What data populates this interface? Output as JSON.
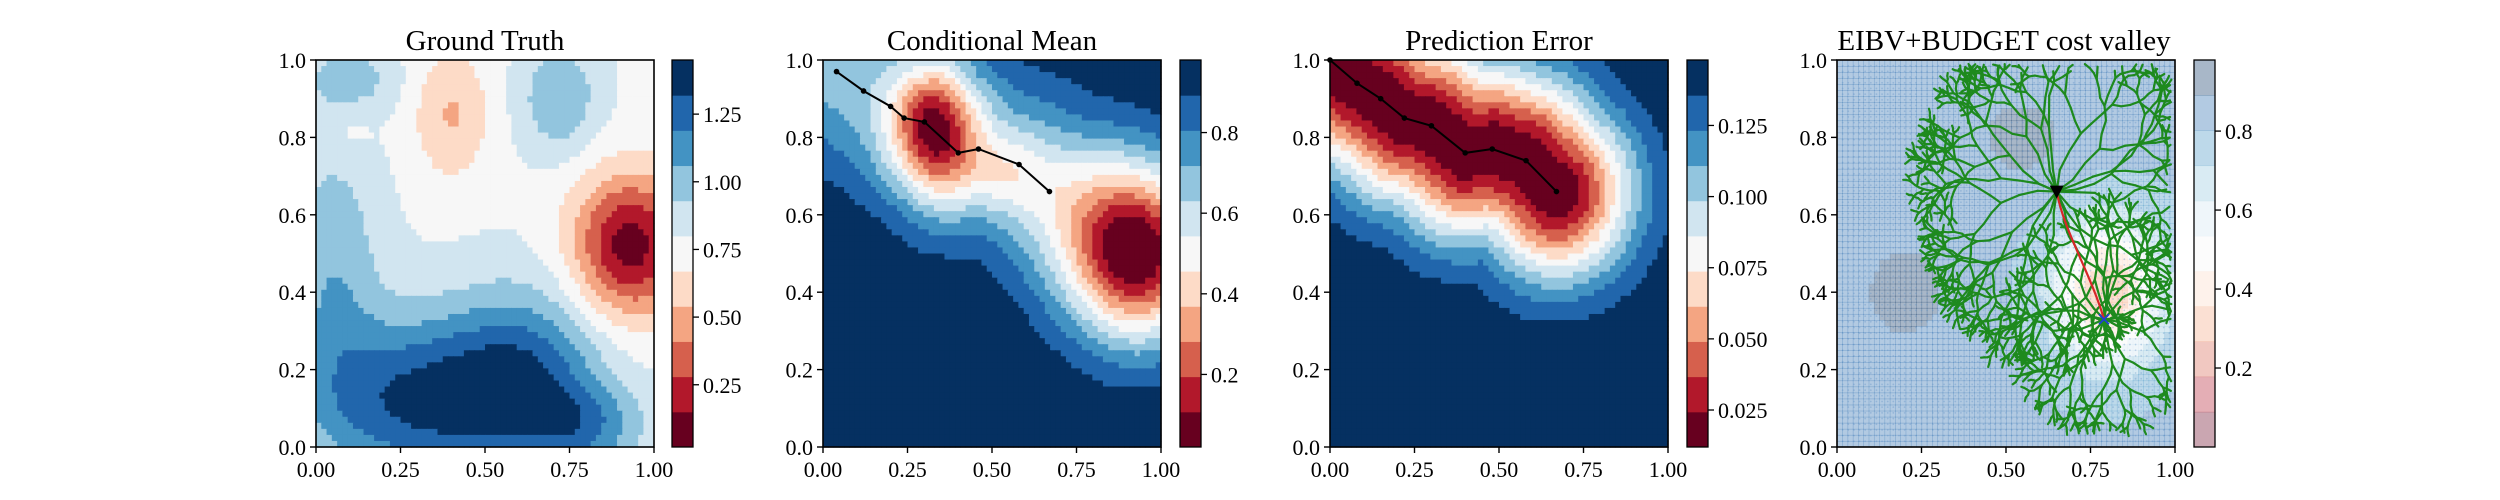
{
  "chart_data": [
    {
      "type": "heatmap",
      "title": "Ground Truth",
      "xlim": [
        0,
        1
      ],
      "ylim": [
        0,
        1
      ],
      "xticks": [
        "0.00",
        "0.25",
        "0.50",
        "0.75",
        "1.00"
      ],
      "yticks": [
        "0.0",
        "0.2",
        "0.4",
        "0.6",
        "0.8",
        "1.0"
      ],
      "colormap": "RdBu",
      "colorbar": {
        "range": [
          0.02,
          1.45
        ],
        "ticks": [
          "0.25",
          "0.50",
          "0.75",
          "1.00",
          "1.25"
        ]
      },
      "field": {
        "base": 0.78,
        "blobs": [
          {
            "x": 0.93,
            "y": 0.52,
            "amp": -0.7,
            "sx": 0.12,
            "sy": 0.13
          },
          {
            "x": 0.4,
            "y": 0.86,
            "amp": -0.25,
            "sx": 0.08,
            "sy": 0.12
          },
          {
            "x": 0.1,
            "y": 0.82,
            "amp": -0.08,
            "sx": 0.05,
            "sy": 0.05
          },
          {
            "x": 0.3,
            "y": 0.12,
            "amp": 0.55,
            "sx": 0.22,
            "sy": 0.15
          },
          {
            "x": 0.62,
            "y": 0.18,
            "amp": 0.45,
            "sx": 0.16,
            "sy": 0.16
          },
          {
            "x": 0.8,
            "y": 0.05,
            "amp": 0.3,
            "sx": 0.12,
            "sy": 0.08
          },
          {
            "x": 0.05,
            "y": 0.45,
            "amp": 0.25,
            "sx": 0.1,
            "sy": 0.25
          },
          {
            "x": 0.72,
            "y": 0.9,
            "amp": 0.28,
            "sx": 0.08,
            "sy": 0.1
          },
          {
            "x": 0.1,
            "y": 0.95,
            "amp": 0.2,
            "sx": 0.1,
            "sy": 0.06
          }
        ]
      }
    },
    {
      "type": "heatmap",
      "title": "Conditional Mean",
      "xlim": [
        0,
        1
      ],
      "ylim": [
        0,
        1
      ],
      "xticks": [
        "0.00",
        "0.25",
        "0.50",
        "0.75",
        "1.00"
      ],
      "yticks": [
        "0.0",
        "0.2",
        "0.4",
        "0.6",
        "0.8",
        "1.0"
      ],
      "colormap": "RdBu",
      "colorbar": {
        "range": [
          0.02,
          0.98
        ],
        "ticks": [
          "0.2",
          "0.4",
          "0.6",
          "0.8"
        ]
      },
      "path": [
        [
          0.04,
          0.97
        ],
        [
          0.12,
          0.92
        ],
        [
          0.2,
          0.88
        ],
        [
          0.24,
          0.85
        ],
        [
          0.3,
          0.84
        ],
        [
          0.4,
          0.76
        ],
        [
          0.46,
          0.77
        ],
        [
          0.58,
          0.73
        ],
        [
          0.67,
          0.66
        ]
      ],
      "field": {
        "base": 0.98,
        "blobs": [
          {
            "x": 0.93,
            "y": 0.5,
            "amp": -0.95,
            "sx": 0.15,
            "sy": 0.16
          },
          {
            "x": 0.33,
            "y": 0.82,
            "amp": -0.65,
            "sx": 0.09,
            "sy": 0.12
          },
          {
            "x": 0.55,
            "y": 0.7,
            "amp": -0.2,
            "sx": 0.1,
            "sy": 0.08
          }
        ],
        "segment_valleys": [
          {
            "path": "self",
            "amp": -0.3,
            "w": 0.16
          }
        ]
      }
    },
    {
      "type": "heatmap",
      "title": "Prediction Error",
      "xlim": [
        0,
        1
      ],
      "ylim": [
        0,
        1
      ],
      "xticks": [
        "0.00",
        "0.25",
        "0.50",
        "0.75",
        "1.00"
      ],
      "yticks": [
        "0.0",
        "0.2",
        "0.4",
        "0.6",
        "0.8",
        "1.0"
      ],
      "colormap": "RdBu",
      "colorbar": {
        "range": [
          0.012,
          0.148
        ],
        "ticks": [
          "0.025",
          "0.050",
          "0.075",
          "0.100",
          "0.125"
        ]
      },
      "path": [
        [
          0.0,
          1.0
        ],
        [
          0.08,
          0.94
        ],
        [
          0.15,
          0.9
        ],
        [
          0.22,
          0.85
        ],
        [
          0.3,
          0.83
        ],
        [
          0.4,
          0.76
        ],
        [
          0.48,
          0.77
        ],
        [
          0.58,
          0.74
        ],
        [
          0.67,
          0.66
        ]
      ],
      "field": {
        "base": 0.148,
        "blobs": [],
        "segment_valleys": [
          {
            "path": "self",
            "amp": -0.136,
            "w": 0.155
          }
        ]
      }
    },
    {
      "type": "heatmap",
      "title": "EIBV+BUDGET cost valley",
      "xlim": [
        0,
        1
      ],
      "ylim": [
        0,
        1
      ],
      "xticks": [
        "0.00",
        "0.25",
        "0.50",
        "0.75",
        "1.00"
      ],
      "yticks": [
        "0.0",
        "0.2",
        "0.4",
        "0.6",
        "0.8",
        "1.0"
      ],
      "colormap": "RdBu",
      "colormap_alpha": 0.35,
      "colorbar": {
        "range": [
          0.0,
          0.98
        ],
        "ticks": [
          "0.2",
          "0.4",
          "0.6",
          "0.8"
        ]
      },
      "current_location": [
        0.65,
        0.66
      ],
      "target_location": [
        0.79,
        0.33
      ],
      "tree_color": "#1e8a1e",
      "route_color": "#d62728",
      "field": {
        "base": 0.82,
        "blobs": [
          {
            "x": 0.8,
            "y": 0.4,
            "amp": -0.55,
            "sx": 0.11,
            "sy": 0.13
          },
          {
            "x": 0.2,
            "y": 0.4,
            "amp": 0.12,
            "sx": 0.1,
            "sy": 0.1
          },
          {
            "x": 0.55,
            "y": 0.8,
            "amp": 0.1,
            "sx": 0.12,
            "sy": 0.1
          }
        ]
      }
    }
  ]
}
